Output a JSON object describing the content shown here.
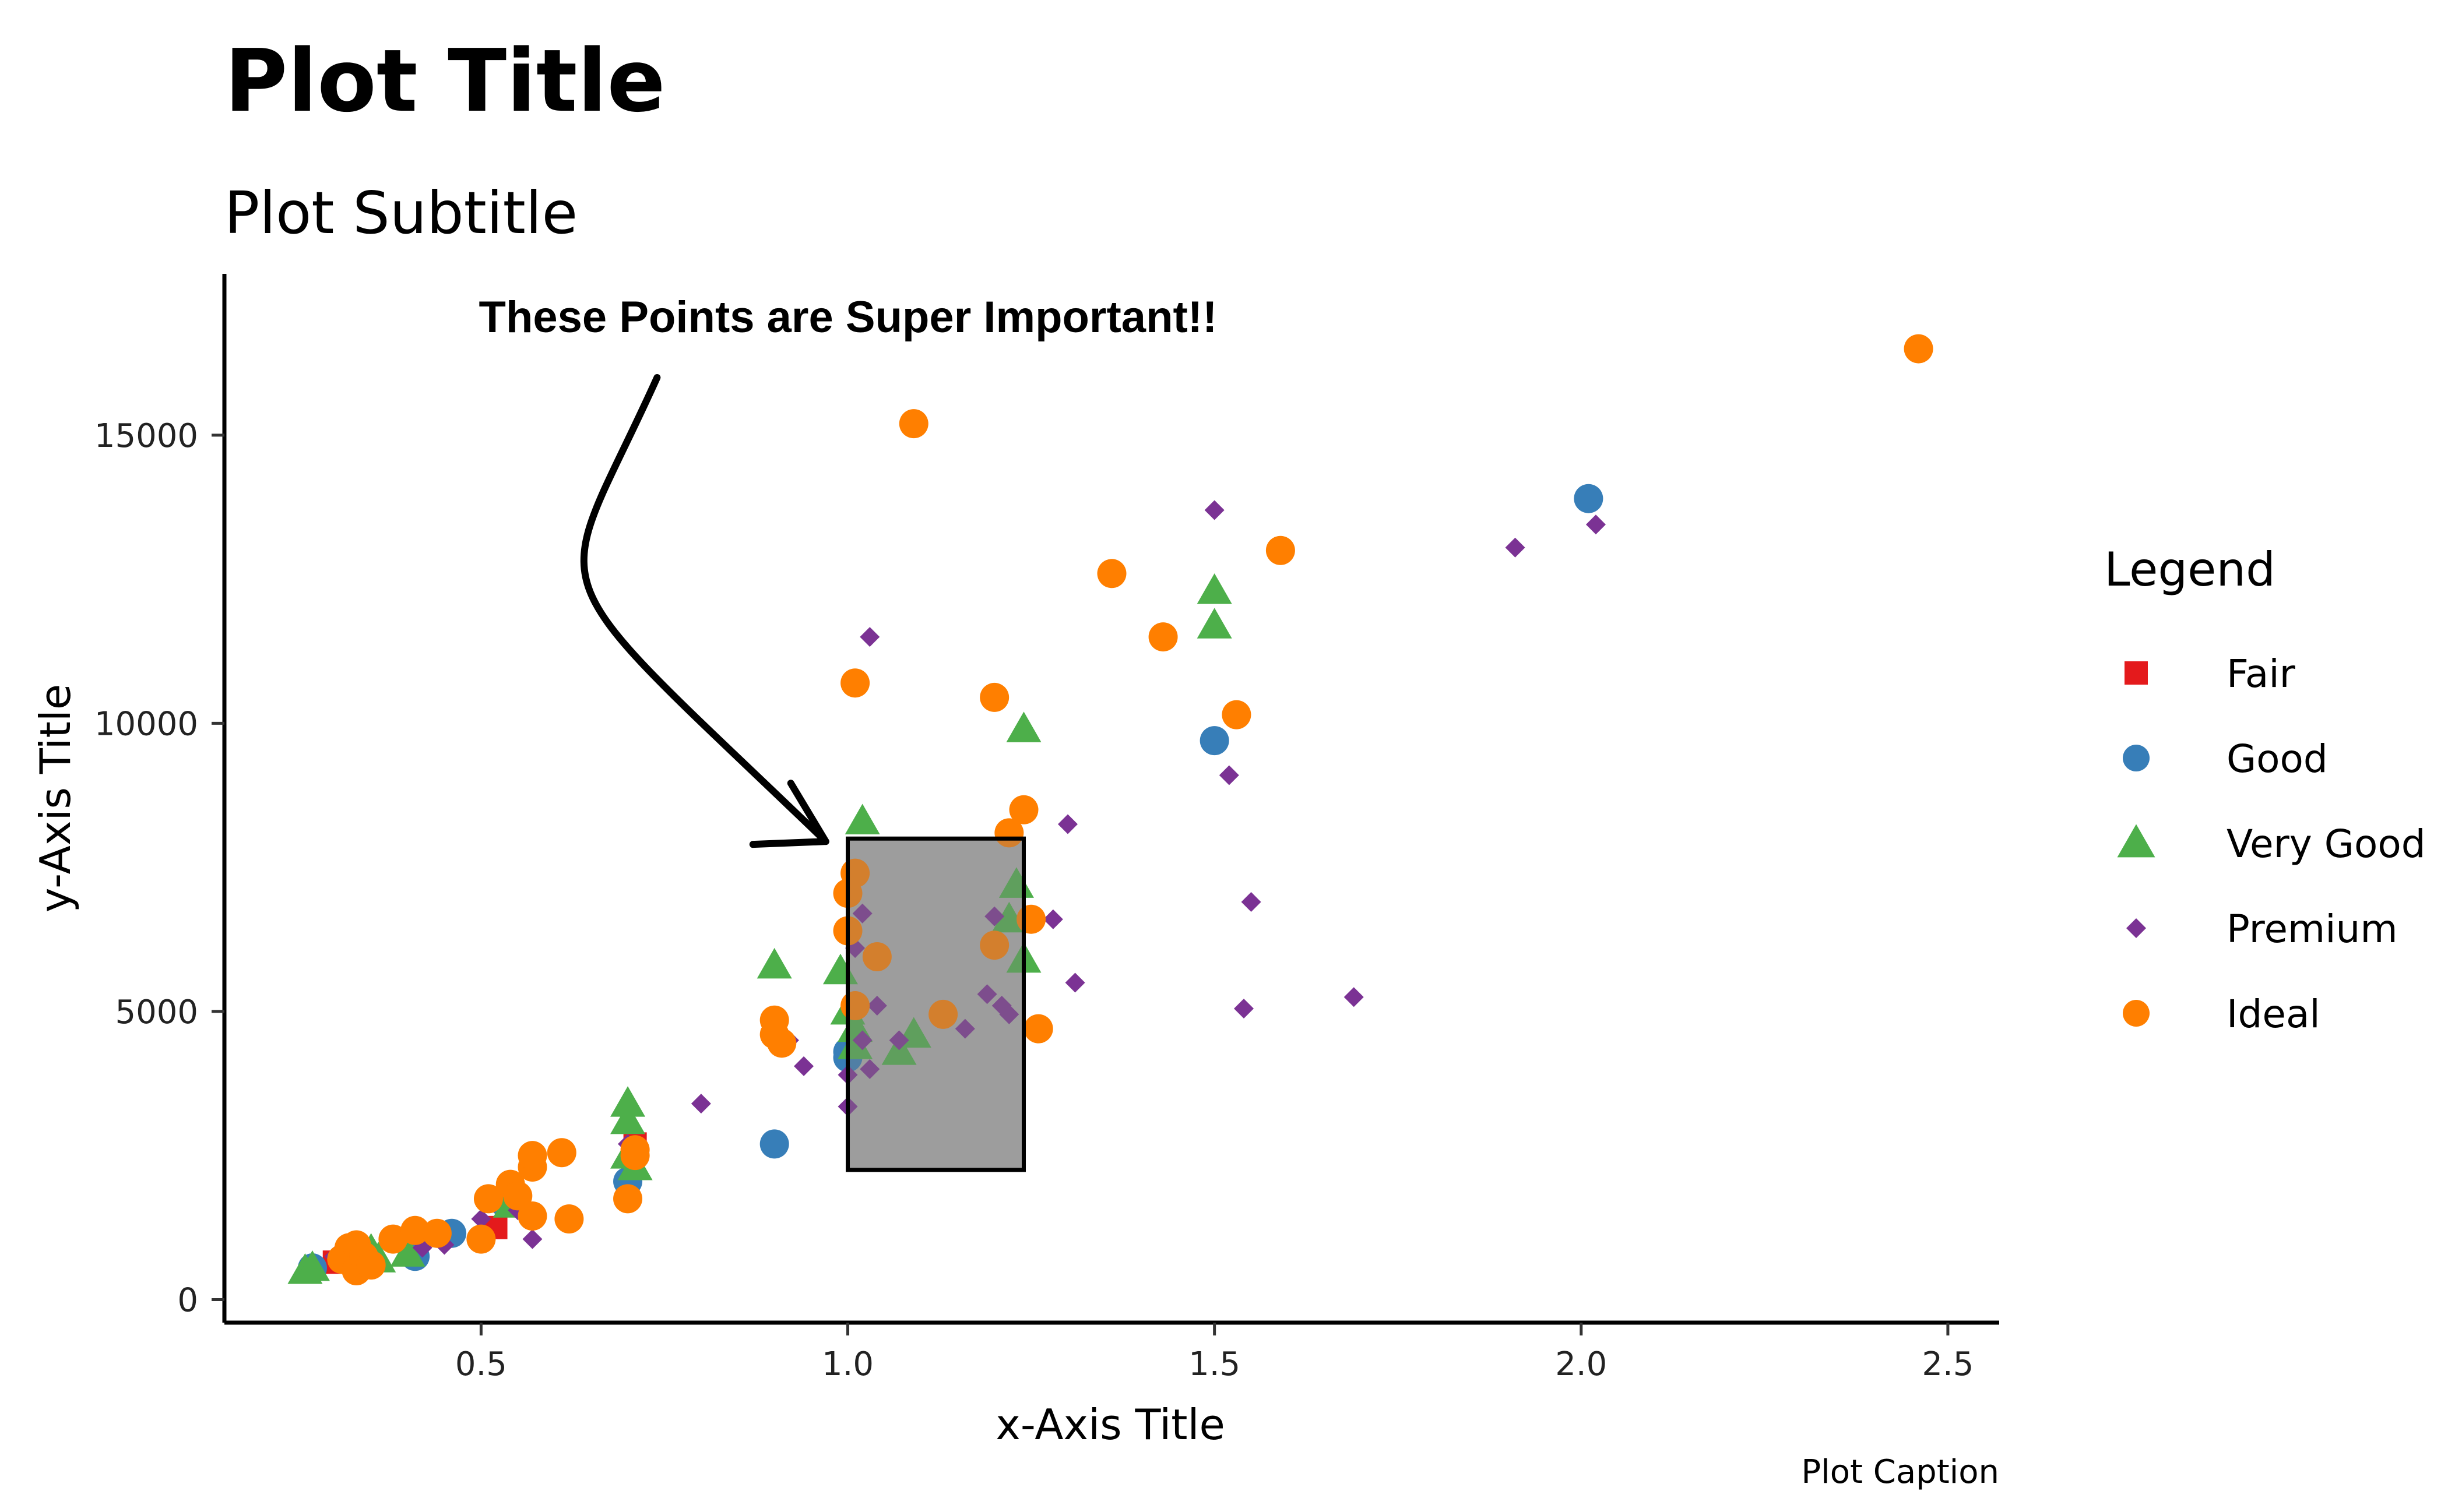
{
  "chart_data": {
    "type": "scatter",
    "title": "Plot Title",
    "subtitle": "Plot Subtitle",
    "xlabel": "x-Axis Title",
    "ylabel": "y-Axis Title",
    "caption": "Plot Caption",
    "xlim": [
      0.15,
      2.57
    ],
    "ylim": [
      -400,
      17800
    ],
    "xticks": [
      0.5,
      1.0,
      1.5,
      2.0,
      2.5
    ],
    "xtick_labels": [
      "0.5",
      "1.0",
      "1.5",
      "2.0",
      "2.5"
    ],
    "yticks": [
      0,
      5000,
      10000,
      15000
    ],
    "ytick_labels": [
      "0",
      "5000",
      "10000",
      "15000"
    ],
    "grid": false,
    "legend": {
      "title": "Legend",
      "placement": "right"
    },
    "series": [
      {
        "name": "Fair",
        "marker": "square",
        "color": "#e41a1c",
        "points": [
          [
            0.52,
            1250
          ],
          [
            0.71,
            2700
          ],
          [
            0.3,
            650
          ]
        ]
      },
      {
        "name": "Good",
        "marker": "circle",
        "color": "#377eb8",
        "points": [
          [
            0.27,
            550
          ],
          [
            0.41,
            750
          ],
          [
            0.46,
            1150
          ],
          [
            0.7,
            2050
          ],
          [
            0.9,
            2700
          ],
          [
            1.0,
            4300
          ],
          [
            1.0,
            4200
          ],
          [
            1.5,
            9700
          ],
          [
            2.01,
            13900
          ],
          [
            0.53,
            1700
          ],
          [
            0.32,
            700
          ]
        ]
      },
      {
        "name": "Very Good",
        "marker": "triangle",
        "color": "#4daf4a",
        "points": [
          [
            0.26,
            500
          ],
          [
            0.27,
            550
          ],
          [
            0.35,
            850
          ],
          [
            0.36,
            700
          ],
          [
            0.4,
            800
          ],
          [
            0.53,
            1800
          ],
          [
            0.54,
            1650
          ],
          [
            0.7,
            3400
          ],
          [
            0.7,
            3100
          ],
          [
            0.7,
            2500
          ],
          [
            0.71,
            2300
          ],
          [
            0.9,
            5800
          ],
          [
            0.99,
            5700
          ],
          [
            1.0,
            5000
          ],
          [
            1.01,
            4700
          ],
          [
            1.01,
            4400
          ],
          [
            1.02,
            8300
          ],
          [
            1.07,
            4300
          ],
          [
            1.09,
            4600
          ],
          [
            1.22,
            6600
          ],
          [
            1.23,
            7200
          ],
          [
            1.24,
            5900
          ],
          [
            1.24,
            9900
          ],
          [
            1.5,
            12300
          ],
          [
            1.5,
            11700
          ]
        ]
      },
      {
        "name": "Premium",
        "marker": "diamond",
        "color": "#7b3294",
        "points": [
          [
            0.3,
            750
          ],
          [
            0.33,
            850
          ],
          [
            0.42,
            900
          ],
          [
            0.45,
            950
          ],
          [
            0.5,
            1400
          ],
          [
            0.55,
            1550
          ],
          [
            0.57,
            1050
          ],
          [
            0.7,
            2700
          ],
          [
            0.8,
            3400
          ],
          [
            0.92,
            4500
          ],
          [
            0.94,
            4050
          ],
          [
            1.0,
            3350
          ],
          [
            1.0,
            3900
          ],
          [
            1.01,
            6100
          ],
          [
            1.02,
            4500
          ],
          [
            1.02,
            6700
          ],
          [
            1.03,
            4000
          ],
          [
            1.03,
            11500
          ],
          [
            1.04,
            5100
          ],
          [
            1.07,
            4500
          ],
          [
            1.16,
            4700
          ],
          [
            1.19,
            5300
          ],
          [
            1.2,
            6650
          ],
          [
            1.21,
            5100
          ],
          [
            1.22,
            4950
          ],
          [
            1.28,
            6600
          ],
          [
            1.3,
            8250
          ],
          [
            1.31,
            5500
          ],
          [
            1.5,
            13700
          ],
          [
            1.52,
            9100
          ],
          [
            1.54,
            5050
          ],
          [
            1.55,
            6900
          ],
          [
            1.69,
            5250
          ],
          [
            1.91,
            13050
          ],
          [
            2.02,
            13450
          ]
        ]
      },
      {
        "name": "Ideal",
        "marker": "circle",
        "color": "#ff7f00",
        "points": [
          [
            0.31,
            700
          ],
          [
            0.32,
            900
          ],
          [
            0.33,
            500
          ],
          [
            0.33,
            950
          ],
          [
            0.34,
            750
          ],
          [
            0.35,
            600
          ],
          [
            0.38,
            1050
          ],
          [
            0.41,
            1200
          ],
          [
            0.44,
            1150
          ],
          [
            0.5,
            1050
          ],
          [
            0.51,
            1750
          ],
          [
            0.54,
            2000
          ],
          [
            0.55,
            1800
          ],
          [
            0.57,
            2300
          ],
          [
            0.57,
            2500
          ],
          [
            0.57,
            1450
          ],
          [
            0.61,
            2550
          ],
          [
            0.62,
            1400
          ],
          [
            0.7,
            1750
          ],
          [
            0.71,
            2500
          ],
          [
            0.71,
            2600
          ],
          [
            0.9,
            4850
          ],
          [
            0.9,
            4600
          ],
          [
            0.91,
            4450
          ],
          [
            1.0,
            7050
          ],
          [
            1.0,
            6400
          ],
          [
            1.01,
            7400
          ],
          [
            1.01,
            10700
          ],
          [
            1.01,
            5100
          ],
          [
            1.04,
            5950
          ],
          [
            1.09,
            15200
          ],
          [
            1.13,
            4950
          ],
          [
            1.2,
            10450
          ],
          [
            1.2,
            6150
          ],
          [
            1.22,
            8100
          ],
          [
            1.24,
            8500
          ],
          [
            1.25,
            6600
          ],
          [
            1.26,
            4700
          ],
          [
            1.36,
            12600
          ],
          [
            1.43,
            11500
          ],
          [
            1.53,
            10150
          ],
          [
            1.59,
            13000
          ],
          [
            2.46,
            16500
          ]
        ]
      }
    ],
    "highlight_box": {
      "x": [
        1.0,
        1.24
      ],
      "y": [
        2250,
        8000
      ],
      "fill": "#808080",
      "opacity": 0.65
    },
    "annotation": {
      "text": "These Points are Super Important!!",
      "arrow_from": [
        0.74,
        16000
      ],
      "arrow_to": [
        0.97,
        7950
      ]
    }
  }
}
